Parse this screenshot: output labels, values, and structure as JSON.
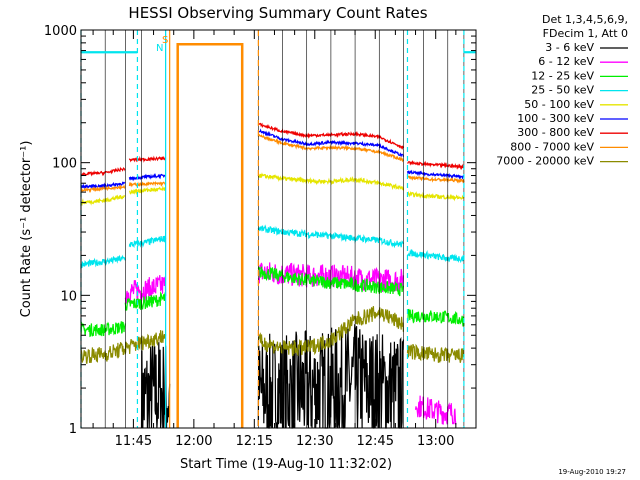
{
  "chart_data": {
    "type": "line",
    "title": "HESSI Observing Summary Count Rates",
    "xlabel": "Start Time (19-Aug-10 11:32:02)",
    "ylabel": "Count Rate (s⁻¹ detector⁻¹)",
    "ylim": [
      1,
      1000
    ],
    "yscale": "log",
    "xlim": [
      "11:32",
      "13:10"
    ],
    "x_ticks": [
      "11:45",
      "12:00",
      "12:15",
      "12:30",
      "12:45",
      "13:00"
    ],
    "y_ticks": [
      "1",
      "10",
      "100",
      "1000"
    ],
    "grid": false,
    "legend_position": "right",
    "legend_header": [
      "Det 1,3,4,5,6,9,",
      "FDecim 1, Att 0"
    ],
    "flags": [
      {
        "label": "S",
        "color": "#ff8c00"
      },
      {
        "label": "N",
        "color": "#00e5ee"
      }
    ],
    "x_grid_times": [
      "11:32",
      "11:38",
      "11:43",
      "11:47",
      "11:53",
      "12:16",
      "12:22",
      "12:28",
      "12:34",
      "12:40",
      "12:46",
      "12:52",
      "12:57",
      "13:03",
      "13:07"
    ],
    "series": [
      {
        "name": "3 - 6 keV",
        "color": "#000000",
        "noise": 0.9,
        "segments": [
          {
            "x": [
              "11:47",
              "11:51",
              "11:54"
            ],
            "y": [
              1.6,
              1.8,
              1.7
            ]
          },
          {
            "x": [
              "12:16",
              "12:24",
              "12:32",
              "12:40",
              "12:46",
              "12:52"
            ],
            "y": [
              1.8,
              1.9,
              2.0,
              2.2,
              2.0,
              1.8
            ]
          }
        ]
      },
      {
        "name": "6 - 12 keV",
        "color": "#ff00ff",
        "noise": 0.18,
        "segments": [
          {
            "x": [
              "11:43",
              "11:48",
              "11:53"
            ],
            "y": [
              10.5,
              11,
              12
            ]
          },
          {
            "x": [
              "12:16",
              "12:22",
              "12:28",
              "12:34",
              "12:40",
              "12:46",
              "12:52"
            ],
            "y": [
              15,
              14.5,
              14,
              14,
              13.5,
              13,
              13
            ]
          },
          {
            "x": [
              "12:55",
              "12:58",
              "13:02",
              "13:05"
            ],
            "y": [
              1.5,
              1.4,
              1.3,
              1.3
            ]
          }
        ]
      },
      {
        "name": "12 - 25 keV",
        "color": "#00ee00",
        "noise": 0.1,
        "segments": [
          {
            "x": [
              "11:32",
              "11:38",
              "11:43"
            ],
            "y": [
              5.5,
              5.5,
              5.8
            ]
          },
          {
            "x": [
              "11:43",
              "11:48",
              "11:53"
            ],
            "y": [
              8.5,
              8.8,
              9.5
            ]
          },
          {
            "x": [
              "12:16",
              "12:22",
              "12:28",
              "12:34",
              "12:40",
              "12:46",
              "12:52"
            ],
            "y": [
              15,
              14,
              13,
              12.5,
              12,
              11.5,
              11
            ]
          },
          {
            "x": [
              "12:53",
              "12:58",
              "13:03",
              "13:07"
            ],
            "y": [
              7,
              7,
              6.8,
              6.5
            ]
          }
        ]
      },
      {
        "name": "25 - 50 keV",
        "color": "#00e5ee",
        "noise": 0.05,
        "segments": [
          {
            "x": [
              "11:32",
              "11:38",
              "11:43"
            ],
            "y": [
              17,
              18,
              19
            ]
          },
          {
            "x": [
              "11:44",
              "11:48",
              "11:53"
            ],
            "y": [
              24,
              25,
              27
            ]
          },
          {
            "x": [
              "12:16",
              "12:22",
              "12:28",
              "12:34",
              "12:40",
              "12:46",
              "12:52"
            ],
            "y": [
              32,
              30,
              29,
              28,
              27,
              26,
              24
            ]
          },
          {
            "x": [
              "12:53",
              "12:58",
              "13:03",
              "13:07"
            ],
            "y": [
              21,
              20,
              19,
              19
            ]
          }
        ]
      },
      {
        "name": "50 - 100 keV",
        "color": "#e5e500",
        "noise": 0.03,
        "segments": [
          {
            "x": [
              "11:32",
              "11:38",
              "11:43"
            ],
            "y": [
              50,
              52,
              56
            ]
          },
          {
            "x": [
              "11:44",
              "11:48",
              "11:53"
            ],
            "y": [
              60,
              62,
              63
            ]
          },
          {
            "x": [
              "12:16",
              "12:22",
              "12:28",
              "12:34",
              "12:40",
              "12:46",
              "12:52"
            ],
            "y": [
              80,
              76,
              73,
              72,
              75,
              70,
              64
            ]
          },
          {
            "x": [
              "12:53",
              "12:58",
              "13:03",
              "13:07"
            ],
            "y": [
              58,
              56,
              55,
              54
            ]
          }
        ]
      },
      {
        "name": "100 - 300 keV",
        "color": "#0000ff",
        "noise": 0.02,
        "segments": [
          {
            "x": [
              "11:32",
              "11:38",
              "11:43"
            ],
            "y": [
              66,
              67,
              70
            ]
          },
          {
            "x": [
              "11:44",
              "11:48",
              "11:53"
            ],
            "y": [
              76,
              78,
              80
            ]
          },
          {
            "x": [
              "12:16",
              "12:22",
              "12:28",
              "12:34",
              "12:40",
              "12:46",
              "12:52"
            ],
            "y": [
              175,
              150,
              138,
              142,
              140,
              135,
              112
            ]
          },
          {
            "x": [
              "12:53",
              "12:58",
              "13:03",
              "13:07"
            ],
            "y": [
              85,
              82,
              80,
              78
            ]
          }
        ]
      },
      {
        "name": "300 - 800 keV",
        "color": "#ee0000",
        "noise": 0.02,
        "segments": [
          {
            "x": [
              "11:32",
              "11:38",
              "11:43"
            ],
            "y": [
              82,
              84,
              90
            ]
          },
          {
            "x": [
              "11:44",
              "11:48",
              "11:53"
            ],
            "y": [
              105,
              106,
              108
            ]
          },
          {
            "x": [
              "12:16",
              "12:22",
              "12:28",
              "12:34",
              "12:40",
              "12:46",
              "12:52"
            ],
            "y": [
              195,
              172,
              160,
              162,
              165,
              156,
              130
            ]
          },
          {
            "x": [
              "12:53",
              "12:58",
              "13:03",
              "13:07"
            ],
            "y": [
              100,
              97,
              95,
              93
            ]
          }
        ]
      },
      {
        "name": "800 - 7000 keV",
        "color": "#ff8c00",
        "noise": 0.02,
        "segments": [
          {
            "x": [
              "11:32",
              "11:38",
              "11:43"
            ],
            "y": [
              62,
              64,
              66
            ]
          },
          {
            "x": [
              "11:44",
              "11:48",
              "11:53"
            ],
            "y": [
              68,
              69,
              70
            ]
          },
          {
            "x": [
              "11:56",
              "11:56",
              "12:12",
              "12:12"
            ],
            "y": [
              1,
              780,
              780,
              1
            ],
            "solid": true,
            "wide": true
          },
          {
            "x": [
              "12:16",
              "12:22",
              "12:28",
              "12:34",
              "12:40",
              "12:46",
              "12:52"
            ],
            "y": [
              160,
              140,
              128,
              130,
              128,
              120,
              105
            ]
          },
          {
            "x": [
              "12:53",
              "12:58",
              "13:03",
              "13:07"
            ],
            "y": [
              78,
              75,
              74,
              73
            ]
          }
        ]
      },
      {
        "name": "7000 - 20000 keV",
        "color": "#8b8b00",
        "noise": 0.12,
        "segments": [
          {
            "x": [
              "11:32",
              "11:38",
              "11:43",
              "11:48",
              "11:53"
            ],
            "y": [
              3.5,
              3.6,
              4,
              4.5,
              5
            ]
          },
          {
            "x": [
              "12:16",
              "12:22",
              "12:28",
              "12:34",
              "12:40",
              "12:46",
              "12:52"
            ],
            "y": [
              4.5,
              4,
              4,
              4.6,
              6.5,
              7.5,
              6
            ]
          },
          {
            "x": [
              "12:53",
              "12:58",
              "13:03",
              "13:07"
            ],
            "y": [
              3.8,
              3.6,
              3.5,
              3.5
            ]
          }
        ]
      }
    ]
  },
  "footer": {
    "timestamp": "19-Aug-2010 19:27"
  }
}
